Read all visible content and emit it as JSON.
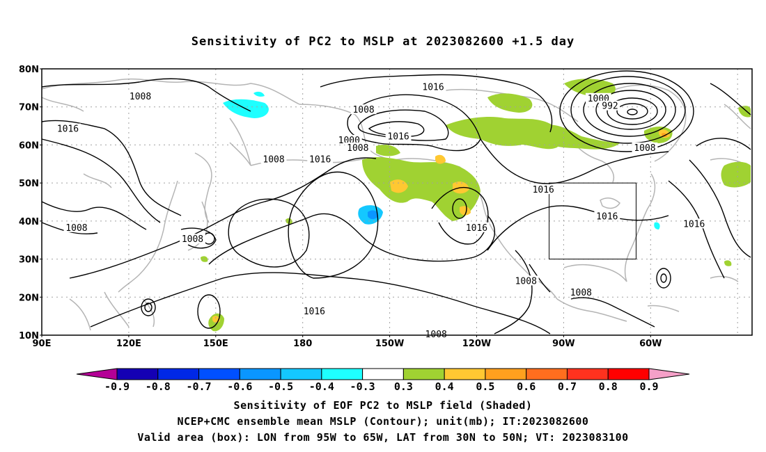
{
  "title": "Sensitivity of PC2 to MSLP at 2023082600 +1.5 day",
  "map": {
    "lat_labels": [
      "80N",
      "70N",
      "60N",
      "50N",
      "40N",
      "30N",
      "20N",
      "10N"
    ],
    "lon_labels": [
      "90E",
      "120E",
      "150E",
      "180",
      "150W",
      "120W",
      "90W",
      "60W"
    ],
    "contour_labels": [
      {
        "text": "1008",
        "lon": 124,
        "lat": 72.5
      },
      {
        "text": "1016",
        "lon": 99,
        "lat": 64
      },
      {
        "text": "1008",
        "lon": 102,
        "lat": 38
      },
      {
        "text": "1008",
        "lon": 142,
        "lat": 35
      },
      {
        "text": "1008",
        "lon": 170,
        "lat": 56
      },
      {
        "text": "1016",
        "lon": 186,
        "lat": 56
      },
      {
        "text": "1008",
        "lon": 201,
        "lat": 69
      },
      {
        "text": "1016",
        "lon": 225,
        "lat": 75
      },
      {
        "text": "1000",
        "lon": 196,
        "lat": 61
      },
      {
        "text": "1008",
        "lon": 199,
        "lat": 59
      },
      {
        "text": "1016",
        "lon": 213,
        "lat": 62
      },
      {
        "text": "1016",
        "lon": 184,
        "lat": 16
      },
      {
        "text": "1016",
        "lon": 240,
        "lat": 38
      },
      {
        "text": "1016",
        "lon": 263,
        "lat": 48
      },
      {
        "text": "1000",
        "lon": 282,
        "lat": 72
      },
      {
        "text": "992",
        "lon": 286,
        "lat": 70
      },
      {
        "text": "1008",
        "lon": 298,
        "lat": 59
      },
      {
        "text": "1016",
        "lon": 285,
        "lat": 41
      },
      {
        "text": "1016",
        "lon": 315,
        "lat": 39
      },
      {
        "text": "1008",
        "lon": 257,
        "lat": 24
      },
      {
        "text": "1008",
        "lon": 276,
        "lat": 21
      },
      {
        "text": "1008",
        "lon": 226,
        "lat": 10
      }
    ],
    "valid_box": {
      "lon_w": 265,
      "lon_e": 295,
      "lat_s": 30,
      "lat_n": 50
    }
  },
  "colorbar": {
    "labels": [
      "-0.9",
      "-0.8",
      "-0.7",
      "-0.6",
      "-0.5",
      "-0.4",
      "-0.3",
      "0.3",
      "0.4",
      "0.5",
      "0.6",
      "0.7",
      "0.8",
      "0.9"
    ],
    "colors": [
      "#b40096",
      "#1400b4",
      "#0028e6",
      "#0050ff",
      "#0a96ff",
      "#14c8ff",
      "#1effff",
      "#ffffff",
      "#a0d232",
      "#ffc832",
      "#ffa01e",
      "#ff6e1e",
      "#ff321e",
      "#ff0000",
      "#f5a0c8"
    ]
  },
  "captions": [
    "Sensitivity of EOF PC2 to MSLP field (Shaded)",
    "NCEP+CMC ensemble mean MSLP (Contour); unit(mb); IT:2023082600",
    "Valid area (box): LON from 95W to 65W, LAT from 30N to 50N; VT: 2023083100"
  ]
}
